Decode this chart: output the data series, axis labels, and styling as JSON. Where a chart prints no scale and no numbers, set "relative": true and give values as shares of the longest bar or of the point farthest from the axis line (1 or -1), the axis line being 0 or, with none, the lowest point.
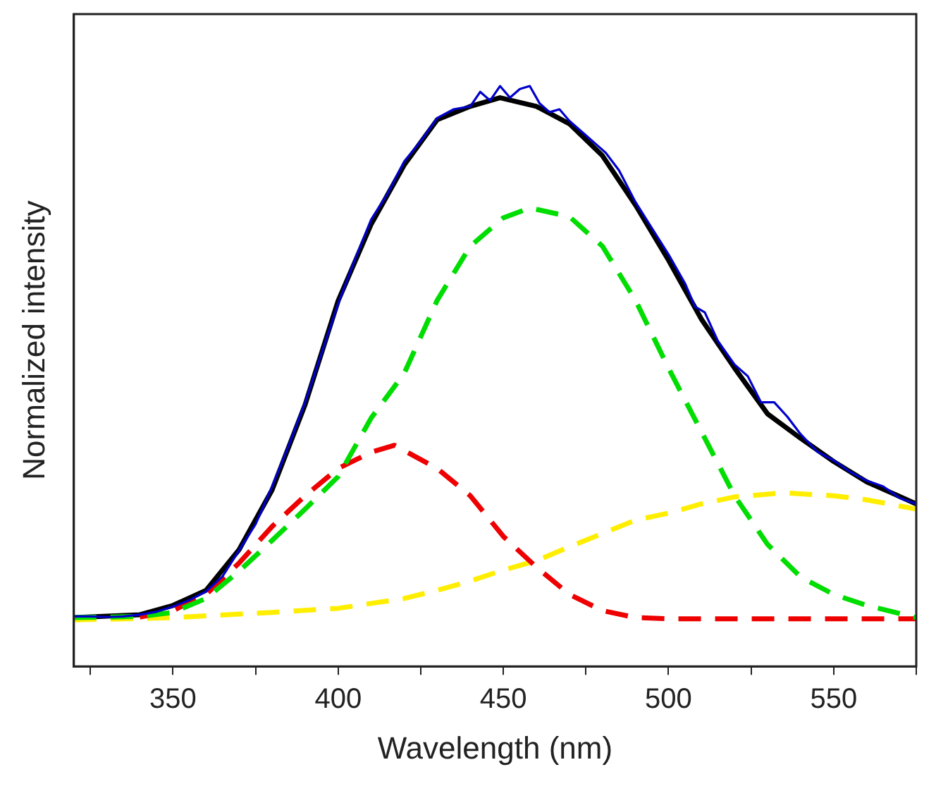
{
  "chart_data": {
    "type": "line",
    "xlabel": "Wavelength (nm)",
    "ylabel": "Normalized intensity",
    "relative": true,
    "marker": "none",
    "legend": false,
    "xlim": [
      320,
      575
    ],
    "xticks": [
      {
        "value": 325,
        "label": null
      },
      350,
      {
        "value": 375,
        "label": null
      },
      400,
      {
        "value": 425,
        "label": null
      },
      450,
      {
        "value": 475,
        "label": null
      },
      500,
      {
        "value": 525,
        "label": null
      },
      550,
      {
        "value": 575,
        "label": null
      }
    ],
    "series": [
      {
        "color": "#0000cc",
        "line_style": "solid",
        "x": [
          320,
          325,
          330,
          335,
          340,
          345,
          350,
          355,
          360,
          365,
          370,
          375,
          380,
          385,
          390,
          395,
          400,
          405,
          410,
          415,
          420,
          425,
          430,
          435,
          440,
          443,
          446,
          449,
          452,
          455,
          458,
          461,
          464,
          467,
          470,
          475,
          478,
          481,
          485,
          490,
          495,
          500,
          505,
          508,
          511,
          515,
          520,
          524,
          528,
          532,
          536,
          540,
          545,
          550,
          555,
          560,
          565,
          570,
          575
        ],
        "values": [
          0.086,
          0.086,
          0.085,
          0.086,
          0.089,
          0.094,
          0.103,
          0.114,
          0.129,
          0.155,
          0.2,
          0.245,
          0.31,
          0.38,
          0.455,
          0.54,
          0.625,
          0.7,
          0.77,
          0.815,
          0.87,
          0.905,
          0.945,
          0.96,
          0.965,
          0.99,
          0.975,
          1.0,
          0.98,
          0.995,
          1.0,
          0.97,
          0.955,
          0.96,
          0.94,
          0.915,
          0.9,
          0.885,
          0.855,
          0.8,
          0.755,
          0.71,
          0.66,
          0.62,
          0.61,
          0.56,
          0.52,
          0.5,
          0.455,
          0.455,
          0.43,
          0.4,
          0.37,
          0.355,
          0.335,
          0.32,
          0.31,
          0.29,
          0.28
        ]
      },
      {
        "color": "#00dd00",
        "line_style": "dashed",
        "x": [
          320,
          340,
          350,
          360,
          370,
          380,
          390,
          400,
          410,
          420,
          430,
          440,
          450,
          458,
          470,
          480,
          490,
          500,
          510,
          520,
          530,
          540,
          550,
          560,
          575
        ],
        "values": [
          0.084,
          0.086,
          0.093,
          0.117,
          0.164,
          0.217,
          0.271,
          0.327,
          0.428,
          0.505,
          0.631,
          0.724,
          0.773,
          0.79,
          0.775,
          0.724,
          0.631,
          0.514,
          0.404,
          0.294,
          0.21,
          0.154,
          0.124,
          0.105,
          0.084
        ]
      },
      {
        "color": "#ee0000",
        "line_style": "dashed",
        "x": [
          340,
          350,
          360,
          370,
          380,
          390,
          400,
          410,
          417,
          430,
          440,
          450,
          460,
          470,
          480,
          490,
          500,
          520,
          540,
          575
        ],
        "values": [
          0.085,
          0.096,
          0.124,
          0.178,
          0.241,
          0.294,
          0.341,
          0.369,
          0.381,
          0.341,
          0.294,
          0.224,
          0.171,
          0.124,
          0.096,
          0.084,
          0.082,
          0.082,
          0.082,
          0.082
        ]
      },
      {
        "color": "#ffee00",
        "line_style": "dashed",
        "x": [
          320,
          350,
          380,
          400,
          420,
          430,
          440,
          450,
          460,
          470,
          480,
          490,
          500,
          510,
          520,
          535,
          550,
          560,
          575
        ],
        "values": [
          0.08,
          0.084,
          0.093,
          0.1,
          0.117,
          0.131,
          0.147,
          0.166,
          0.182,
          0.206,
          0.229,
          0.252,
          0.264,
          0.28,
          0.292,
          0.299,
          0.294,
          0.287,
          0.271
        ]
      },
      {
        "color": "#000000",
        "line_style": "solid",
        "x": [
          320,
          340,
          350,
          360,
          370,
          380,
          390,
          400,
          410,
          420,
          430,
          440,
          449,
          460,
          470,
          480,
          490,
          500,
          510,
          520,
          530,
          540,
          550,
          560,
          575
        ],
        "values": [
          0.084,
          0.089,
          0.105,
          0.131,
          0.201,
          0.304,
          0.451,
          0.63,
          0.762,
          0.864,
          0.942,
          0.965,
          0.98,
          0.965,
          0.935,
          0.88,
          0.795,
          0.7,
          0.598,
          0.514,
          0.435,
          0.393,
          0.353,
          0.318,
          0.28
        ]
      }
    ]
  }
}
